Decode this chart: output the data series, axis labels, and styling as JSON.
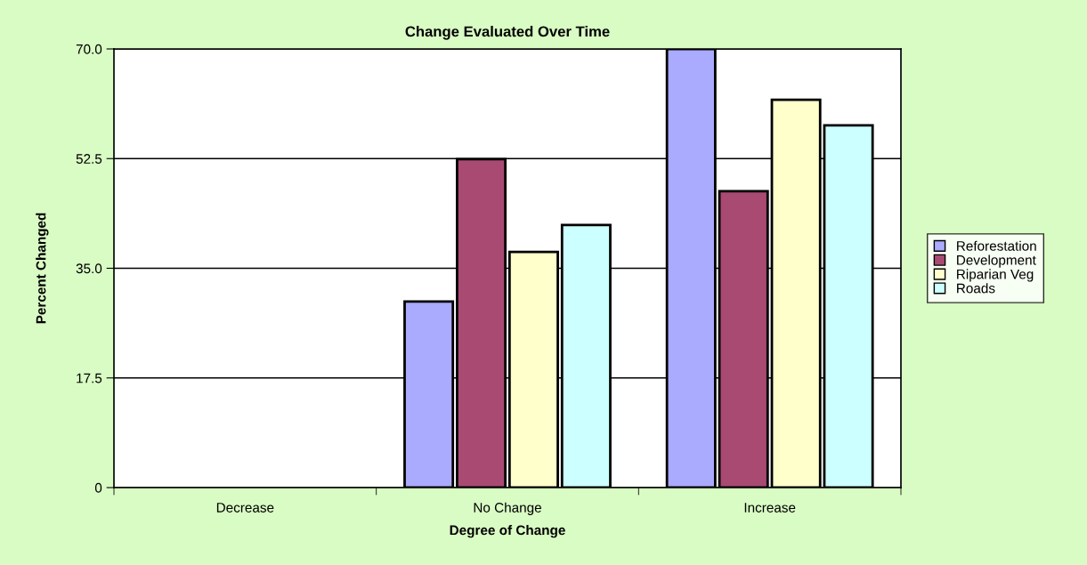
{
  "chart_data": {
    "type": "bar",
    "title": "Change Evaluated Over Time",
    "xlabel": "Degree of Change",
    "ylabel": "Percent Changed",
    "categories": [
      "Decrease",
      "No Change",
      "Increase"
    ],
    "series": [
      {
        "name": "Reforestation",
        "color": "#aaaaff",
        "values": [
          null,
          29.7,
          70.0
        ]
      },
      {
        "name": "Development",
        "color": "#a94a73",
        "values": [
          null,
          52.4,
          47.3
        ]
      },
      {
        "name": "Riparian Veg",
        "color": "#ffffcc",
        "values": [
          null,
          37.6,
          61.9
        ]
      },
      {
        "name": "Roads",
        "color": "#ccffff",
        "values": [
          null,
          41.9,
          57.8
        ]
      }
    ],
    "ylim": [
      0,
      70
    ],
    "yticks": [
      0,
      {
        "value": 17.5,
        "label": "17.5"
      },
      {
        "value": 35,
        "label": "35.0"
      },
      {
        "value": 52.5,
        "label": "52.5"
      },
      {
        "value": 70,
        "label": "70.0"
      }
    ],
    "grid": "y",
    "legend": "right"
  }
}
